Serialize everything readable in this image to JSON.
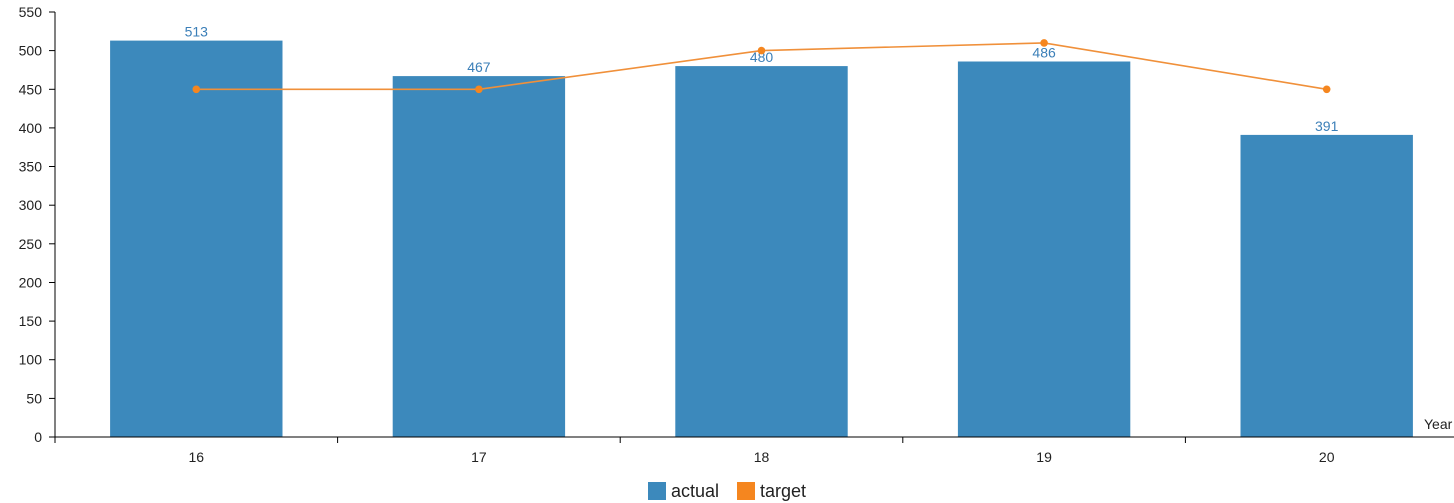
{
  "chart_data": {
    "type": "bar",
    "categories": [
      "16",
      "17",
      "18",
      "19",
      "20"
    ],
    "series": [
      {
        "name": "actual",
        "type": "bar",
        "values": [
          513,
          467,
          480,
          486,
          391
        ],
        "color": "#3c89bc",
        "label_color": "#3b7fb8"
      },
      {
        "name": "target",
        "type": "line",
        "values": [
          450,
          450,
          500,
          510,
          450
        ],
        "color": "#f0903a",
        "marker_color": "#f5861f"
      }
    ],
    "xlabel": "Year",
    "ylabel": "",
    "ylim": [
      0,
      550
    ],
    "yticks": [
      0,
      50,
      100,
      150,
      200,
      250,
      300,
      350,
      400,
      450,
      500,
      550
    ],
    "grid": false,
    "legend_position": "bottom"
  }
}
